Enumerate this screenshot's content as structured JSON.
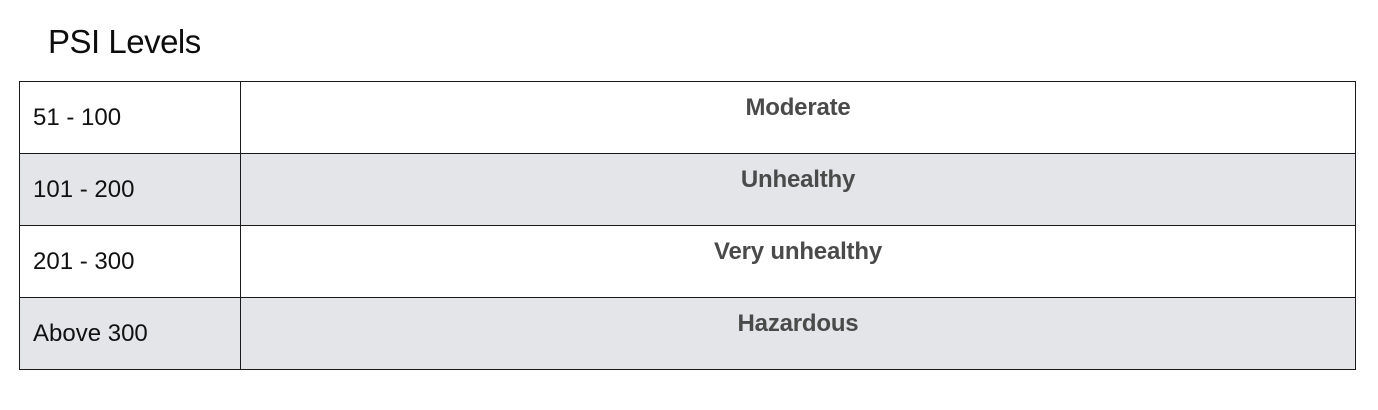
{
  "title": "PSI Levels",
  "rows": [
    {
      "range": "51 - 100",
      "level": "Moderate"
    },
    {
      "range": "101 - 200",
      "level": "Unhealthy"
    },
    {
      "range": "201 - 300",
      "level": "Very unhealthy"
    },
    {
      "range": "Above 300",
      "level": "Hazardous"
    }
  ],
  "colors": {
    "alt_row_background": "#e4e5e8",
    "border": "#1a1a1a",
    "level_text": "#4a4a4a"
  }
}
